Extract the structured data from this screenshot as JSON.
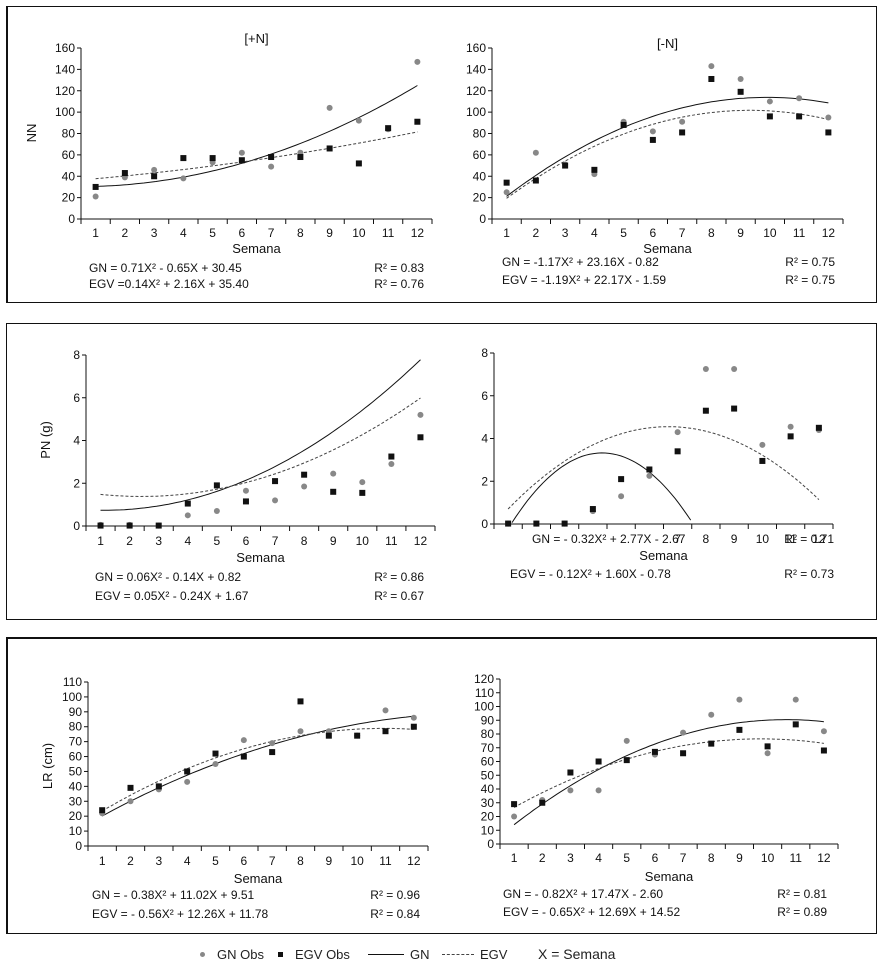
{
  "legend": {
    "gn_obs": "GN Obs",
    "egv_obs": "EGV Obs",
    "gn": "GN",
    "egv": "EGV",
    "x_def": "X = Semana"
  },
  "colors": {
    "gn_obs": "#888888",
    "egv_obs": "#111111",
    "gn_line": "#111111",
    "egv_line": "#444444"
  },
  "chart_data": [
    {
      "id": "nn-plus-n",
      "type": "scatter",
      "title": "[+N]",
      "xlabel": "Semana",
      "ylabel": "NN",
      "categories": [
        "1",
        "2",
        "3",
        "4",
        "5",
        "6",
        "7",
        "8",
        "9",
        "10",
        "11",
        "12"
      ],
      "ylim": [
        0,
        160
      ],
      "yticks": [
        0,
        20,
        40,
        60,
        80,
        100,
        120,
        140,
        160
      ],
      "series": [
        {
          "name": "GN Obs",
          "values": [
            21,
            39,
            46,
            38,
            53,
            62,
            49,
            62,
            104,
            92,
            84,
            147
          ]
        },
        {
          "name": "EGV Obs",
          "values": [
            30,
            43,
            40,
            57,
            57,
            55,
            58,
            58,
            66,
            52,
            85,
            91
          ]
        }
      ],
      "fits": [
        {
          "name": "GN",
          "coef": [
            0.71,
            -0.65,
            30.45
          ],
          "r2_label": "R² = 0.83",
          "label": "GN = 0.71X² - 0.65X + 30.45"
        },
        {
          "name": "EGV",
          "coef": [
            0.14,
            2.16,
            35.4
          ],
          "r2_label": "R² = 0.76",
          "label": "EGV =0.14X² + 2.16X + 35.40"
        }
      ]
    },
    {
      "id": "nn-minus-n",
      "type": "scatter",
      "title": "[-N]",
      "xlabel": "Semana",
      "ylabel": "",
      "categories": [
        "1",
        "2",
        "3",
        "4",
        "5",
        "6",
        "7",
        "8",
        "9",
        "10",
        "11",
        "12"
      ],
      "ylim": [
        0,
        160
      ],
      "yticks": [
        0,
        20,
        40,
        60,
        80,
        100,
        120,
        140,
        160
      ],
      "series": [
        {
          "name": "GN Obs",
          "values": [
            25,
            62,
            51,
            42,
            91,
            82,
            91,
            143,
            131,
            110,
            113,
            95
          ]
        },
        {
          "name": "EGV Obs",
          "values": [
            34,
            36,
            50,
            46,
            88,
            74,
            81,
            131,
            119,
            96,
            96,
            81
          ]
        }
      ],
      "fits": [
        {
          "name": "GN",
          "coef": [
            -1.17,
            23.16,
            -0.82
          ],
          "r2_label": "R² = 0.75",
          "label": "GN = -1.17X² + 23.16X - 0.82"
        },
        {
          "name": "EGV",
          "coef": [
            -1.19,
            22.17,
            -1.59
          ],
          "r2_label": "R² = 0.75",
          "label": "EGV = -1.19X² + 22.17X - 1.59"
        }
      ]
    },
    {
      "id": "pn-plus-n",
      "type": "scatter",
      "title": "",
      "xlabel": "Semana",
      "ylabel": "PN (g)",
      "categories": [
        "1",
        "2",
        "3",
        "4",
        "5",
        "6",
        "7",
        "8",
        "9",
        "10",
        "11",
        "12"
      ],
      "ylim": [
        0,
        8
      ],
      "yticks": [
        0,
        2,
        4,
        6,
        8
      ],
      "series": [
        {
          "name": "GN Obs",
          "values": [
            0.05,
            0.05,
            0.02,
            0.5,
            0.7,
            1.65,
            1.2,
            1.85,
            2.45,
            2.05,
            2.9,
            5.2
          ]
        },
        {
          "name": "EGV Obs",
          "values": [
            0.02,
            0.02,
            0.02,
            1.05,
            1.9,
            1.15,
            2.1,
            2.4,
            1.6,
            1.55,
            3.25,
            4.15
          ]
        }
      ],
      "fits": [
        {
          "name": "GN",
          "coef": [
            0.06,
            -0.14,
            0.82
          ],
          "r2_label": "R² = 0.86",
          "label": "GN = 0.06X² - 0.14X + 0.82"
        },
        {
          "name": "EGV",
          "coef": [
            0.05,
            -0.24,
            1.67
          ],
          "r2_label": "R² = 0.67",
          "label": "EGV = 0.05X² - 0.24X + 1.67"
        }
      ]
    },
    {
      "id": "pn-minus-n",
      "type": "scatter",
      "title": "",
      "xlabel": "Semana",
      "ylabel": "",
      "categories": [
        "1",
        "2",
        "3",
        "4",
        "5",
        "6",
        "7",
        "8",
        "9",
        "10",
        "11",
        "12"
      ],
      "tick_label_overlap": "1GN 2 - 0.32X² 4 2.775X - 267 7",
      "ylim": [
        0,
        8
      ],
      "yticks": [
        0,
        2,
        4,
        6,
        8
      ],
      "series": [
        {
          "name": "GN Obs",
          "values": [
            0.02,
            0.02,
            0.02,
            0.6,
            1.3,
            2.25,
            4.3,
            7.25,
            7.25,
            3.7,
            4.55,
            4.4
          ]
        },
        {
          "name": "EGV Obs",
          "values": [
            0.02,
            0.02,
            0.02,
            0.7,
            2.1,
            2.55,
            3.4,
            5.3,
            5.4,
            2.95,
            4.1,
            4.5
          ]
        }
      ],
      "fits": [
        {
          "name": "GN",
          "coef": [
            -0.32,
            2.77,
            -2.67
          ],
          "r2_label": "R² = 0.71",
          "label": "GN = - 0.32X² + 2.77X - 2.67"
        },
        {
          "name": "EGV",
          "coef": [
            -0.12,
            1.6,
            -0.78
          ],
          "r2_label": "R² = 0.73",
          "label": "EGV = - 0.12X² + 1.60X - 0.78"
        }
      ]
    },
    {
      "id": "lr-plus-n",
      "type": "scatter",
      "title": "",
      "xlabel": "Semana",
      "ylabel": "LR (cm)",
      "categories": [
        "1",
        "2",
        "3",
        "4",
        "5",
        "6",
        "7",
        "8",
        "9",
        "10",
        "11",
        "12"
      ],
      "ylim": [
        0,
        110
      ],
      "yticks": [
        0,
        10,
        20,
        30,
        40,
        50,
        60,
        70,
        80,
        90,
        100,
        110
      ],
      "series": [
        {
          "name": "GN Obs",
          "values": [
            22,
            30,
            38,
            43,
            55,
            71,
            69,
            77,
            77,
            74,
            91,
            86
          ]
        },
        {
          "name": "EGV Obs",
          "values": [
            24,
            39,
            40,
            50,
            62,
            60,
            63,
            97,
            74,
            74,
            77,
            80
          ]
        }
      ],
      "fits": [
        {
          "name": "GN",
          "coef": [
            -0.38,
            11.02,
            9.51
          ],
          "r2_label": "R² = 0.96",
          "label": "GN = - 0.38X² + 11.02X + 9.51"
        },
        {
          "name": "EGV",
          "coef": [
            -0.56,
            12.26,
            11.78
          ],
          "r2_label": "R² = 0.84",
          "label": "EGV = - 0.56X² + 12.26X + 11.78"
        }
      ]
    },
    {
      "id": "lr-minus-n",
      "type": "scatter",
      "title": "",
      "xlabel": "Semana",
      "ylabel": "",
      "categories": [
        "1",
        "2",
        "3",
        "4",
        "5",
        "6",
        "7",
        "8",
        "9",
        "10",
        "11",
        "12"
      ],
      "ylim": [
        0,
        120
      ],
      "yticks": [
        0,
        10,
        20,
        30,
        40,
        50,
        60,
        70,
        80,
        90,
        100,
        110,
        120
      ],
      "series": [
        {
          "name": "GN Obs",
          "values": [
            20,
            32,
            39,
            39,
            75,
            65,
            81,
            94,
            105,
            66,
            105,
            82
          ]
        },
        {
          "name": "EGV Obs",
          "values": [
            29,
            30,
            52,
            60,
            61,
            67,
            66,
            73,
            83,
            71,
            87,
            68
          ]
        }
      ],
      "fits": [
        {
          "name": "GN",
          "coef": [
            -0.82,
            17.47,
            -2.6
          ],
          "r2_label": "R² = 0.81",
          "label": "GN = - 0.82X² + 17.47X - 2.60"
        },
        {
          "name": "EGV",
          "coef": [
            -0.65,
            12.69,
            14.52
          ],
          "r2_label": "R² = 0.89",
          "label": "EGV = - 0.65X² + 12.69X + 14.52"
        }
      ]
    }
  ]
}
